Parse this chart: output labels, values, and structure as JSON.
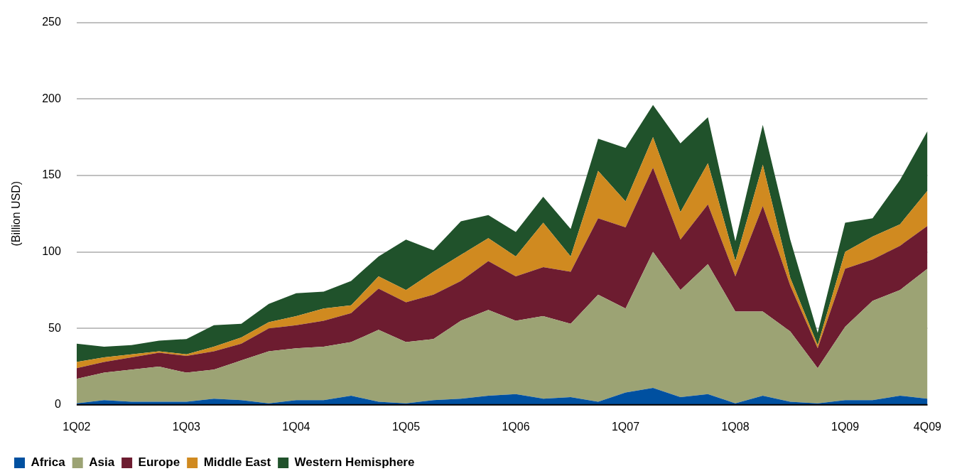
{
  "chart_data": {
    "type": "area",
    "stacked": true,
    "ylabel": "(Billion USD)",
    "categories": [
      "1Q02",
      null,
      null,
      null,
      "1Q03",
      null,
      null,
      null,
      "1Q04",
      null,
      null,
      null,
      "1Q05",
      null,
      null,
      null,
      "1Q06",
      null,
      null,
      null,
      "1Q07",
      null,
      null,
      null,
      "1Q08",
      null,
      null,
      null,
      "1Q09",
      null,
      null,
      "4Q09"
    ],
    "series": [
      {
        "name": "Africa",
        "color": "#0050a0",
        "values": [
          1,
          3,
          2,
          2,
          2,
          4,
          3,
          1,
          3,
          3,
          6,
          2,
          1,
          3,
          4,
          6,
          7,
          4,
          5,
          2,
          8,
          11,
          5,
          7,
          1,
          6,
          2,
          1,
          3,
          3,
          6,
          4
        ]
      },
      {
        "name": "Asia",
        "color": "#9ca374",
        "values": [
          16,
          18,
          21,
          23,
          19,
          19,
          26,
          34,
          34,
          35,
          35,
          47,
          40,
          40,
          51,
          56,
          48,
          54,
          48,
          70,
          55,
          89,
          70,
          85,
          60,
          55,
          46,
          23,
          48,
          65,
          69,
          85
        ]
      },
      {
        "name": "Europe",
        "color": "#6d1c30",
        "values": [
          7,
          7,
          8,
          9,
          11,
          12,
          11,
          15,
          15,
          17,
          19,
          27,
          26,
          29,
          26,
          32,
          29,
          32,
          34,
          50,
          53,
          55,
          33,
          39,
          23,
          69,
          30,
          13,
          38,
          27,
          29,
          28
        ]
      },
      {
        "name": "Middle East",
        "color": "#d08a20",
        "values": [
          4,
          3,
          2,
          1,
          1,
          3,
          4,
          4,
          6,
          8,
          5,
          8,
          8,
          15,
          17,
          15,
          13,
          29,
          10,
          31,
          17,
          20,
          18,
          27,
          10,
          27,
          5,
          2,
          11,
          15,
          14,
          23
        ]
      },
      {
        "name": "Western Hemisphere",
        "color": "#20522b",
        "values": [
          12,
          7,
          6,
          7,
          10,
          14,
          9,
          12,
          15,
          11,
          16,
          13,
          33,
          14,
          22,
          15,
          16,
          17,
          18,
          21,
          35,
          21,
          45,
          30,
          13,
          26,
          25,
          8,
          19,
          12,
          29,
          39
        ]
      }
    ],
    "ylim": [
      0,
      250
    ],
    "yticks": [
      0,
      50,
      100,
      150,
      200,
      250
    ],
    "grid": "y",
    "legend": "bottom left"
  }
}
